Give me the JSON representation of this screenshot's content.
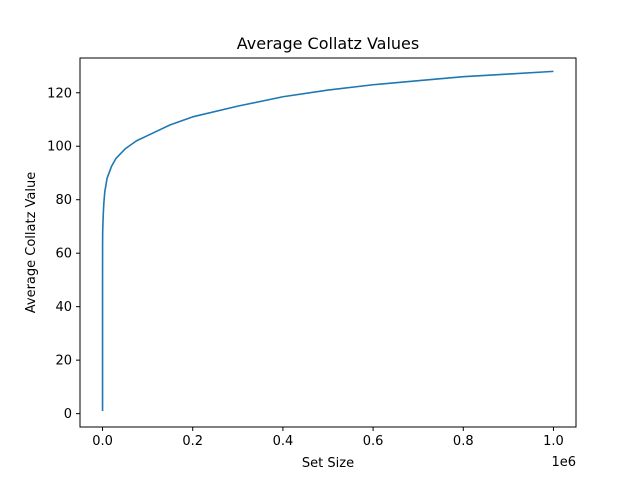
{
  "chart_data": {
    "type": "line",
    "title": "Average Collatz Values",
    "xlabel": "Set Size",
    "ylabel": "Average Collatz Value",
    "x_offset_label": "1e6",
    "xlim": [
      -50000,
      1050000
    ],
    "ylim": [
      -5,
      133
    ],
    "x_ticks": [
      0,
      200000,
      400000,
      600000,
      800000,
      1000000
    ],
    "x_tick_labels": [
      "0.0",
      "0.2",
      "0.4",
      "0.6",
      "0.8",
      "1.0"
    ],
    "y_ticks": [
      0,
      20,
      40,
      60,
      80,
      100,
      120
    ],
    "y_tick_labels": [
      "0",
      "20",
      "40",
      "60",
      "80",
      "100",
      "120"
    ],
    "grid": false,
    "series": [
      {
        "color": "#1f77b4",
        "x": [
          1,
          10,
          100,
          300,
          1000,
          2000,
          3000,
          5000,
          10000,
          20000,
          30000,
          50000,
          75000,
          100000,
          150000,
          200000,
          300000,
          400000,
          500000,
          600000,
          700000,
          800000,
          900000,
          1000000
        ],
        "y": [
          1,
          50,
          63,
          68,
          72,
          76,
          79,
          83,
          88,
          92.5,
          95.5,
          99,
          102,
          104,
          108,
          111,
          115,
          118.5,
          121,
          123,
          124.5,
          126,
          127,
          128
        ]
      }
    ]
  }
}
